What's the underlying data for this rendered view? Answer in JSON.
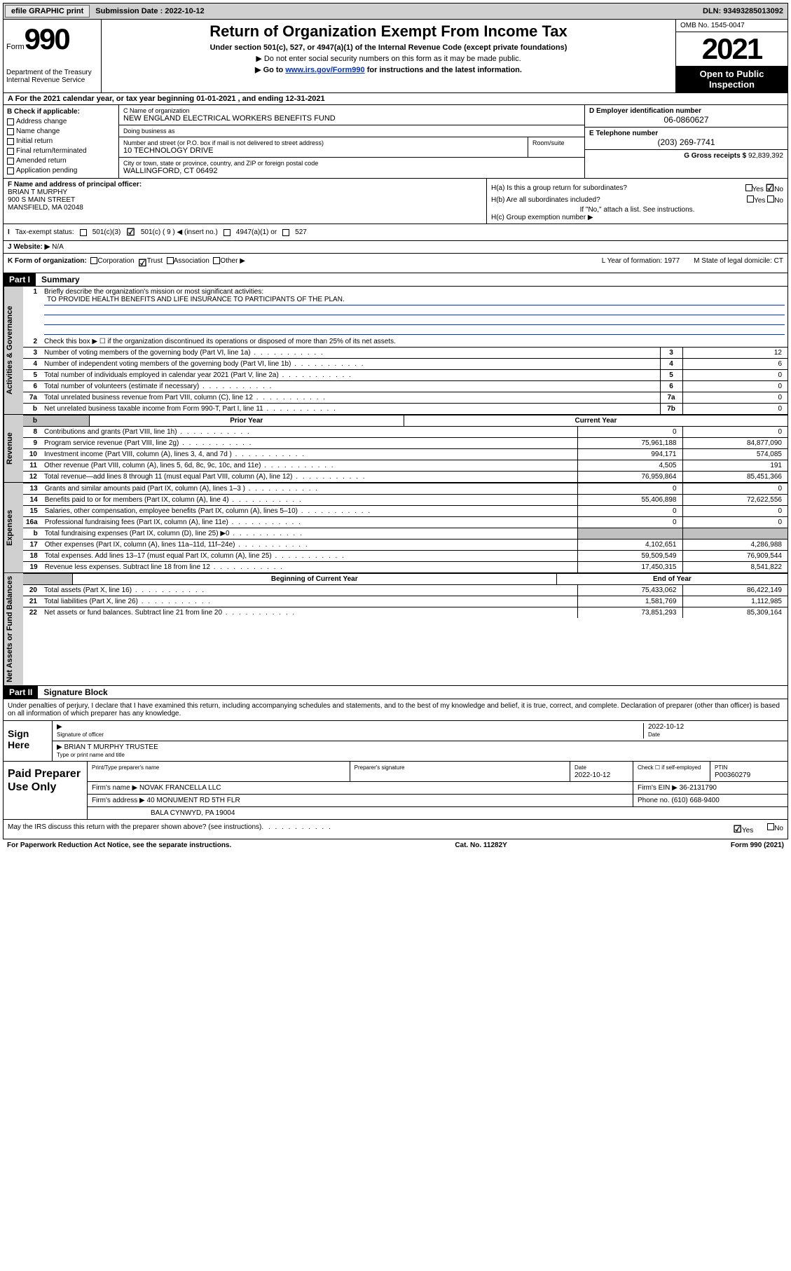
{
  "topbar": {
    "efile": "efile GRAPHIC print",
    "sub_label": "Submission Date : ",
    "sub_date": "2022-10-12",
    "dln": "DLN: 93493285013092"
  },
  "header": {
    "form_word": "Form",
    "form_num": "990",
    "dept": "Department of the Treasury\nInternal Revenue Service",
    "title": "Return of Organization Exempt From Income Tax",
    "subtitle": "Under section 501(c), 527, or 4947(a)(1) of the Internal Revenue Code (except private foundations)",
    "note1": "▶ Do not enter social security numbers on this form as it may be made public.",
    "note2_pre": "▶ Go to ",
    "note2_link": "www.irs.gov/Form990",
    "note2_post": " for instructions and the latest information.",
    "omb": "OMB No. 1545-0047",
    "year": "2021",
    "open": "Open to Public Inspection"
  },
  "row_a": "A For the 2021 calendar year, or tax year beginning 01-01-2021   , and ending 12-31-2021",
  "col_b": {
    "hdr": "B Check if applicable:",
    "items": [
      "Address change",
      "Name change",
      "Initial return",
      "Final return/terminated",
      "Amended return",
      "Application pending"
    ]
  },
  "col_c": {
    "name_lbl": "C Name of organization",
    "name": "NEW ENGLAND ELECTRICAL WORKERS BENEFITS FUND",
    "dba_lbl": "Doing business as",
    "dba": "",
    "street_lbl": "Number and street (or P.O. box if mail is not delivered to street address)",
    "street": "10 TECHNOLOGY DRIVE",
    "room_lbl": "Room/suite",
    "city_lbl": "City or town, state or province, country, and ZIP or foreign postal code",
    "city": "WALLINGFORD, CT  06492"
  },
  "col_d": {
    "ein_lbl": "D Employer identification number",
    "ein": "06-0860627",
    "tel_lbl": "E Telephone number",
    "tel": "(203) 269-7741",
    "gross_lbl": "G Gross receipts $",
    "gross": "92,839,392"
  },
  "row_f": {
    "lbl": "F Name and address of principal officer:",
    "name": "BRIAN T MURPHY",
    "street": "900 S MAIN STREET",
    "city": "MANSFIELD, MA  02048"
  },
  "row_h": {
    "ha": "H(a)  Is this a group return for subordinates?",
    "hb": "H(b)  Are all subordinates included?",
    "hb_note": "If \"No,\" attach a list. See instructions.",
    "hc": "H(c)  Group exemption number ▶",
    "yes": "Yes",
    "no": "No"
  },
  "row_i": {
    "lbl": "Tax-exempt status:",
    "opts": [
      "501(c)(3)",
      "501(c) ( 9 ) ◀ (insert no.)",
      "4947(a)(1) or",
      "527"
    ]
  },
  "row_j": {
    "lbl": "J   Website: ▶",
    "val": "N/A"
  },
  "row_k": {
    "lbl": "K Form of organization:",
    "opts": [
      "Corporation",
      "Trust",
      "Association",
      "Other ▶"
    ],
    "l": "L Year of formation: 1977",
    "m": "M State of legal domicile: CT"
  },
  "part1": {
    "hdr": "Part I",
    "title": "Summary",
    "line1_lbl": "Briefly describe the organization's mission or most significant activities:",
    "line1_val": "TO PROVIDE HEALTH BENEFITS AND LIFE INSURANCE TO PARTICIPANTS OF THE PLAN.",
    "line2": "Check this box ▶ ☐  if the organization discontinued its operations or disposed of more than 25% of its net assets.",
    "tab_gov": "Activities & Governance",
    "tab_rev": "Revenue",
    "tab_exp": "Expenses",
    "tab_net": "Net Assets or Fund Balances",
    "rows_gov": [
      {
        "n": "3",
        "t": "Number of voting members of the governing body (Part VI, line 1a)",
        "b": "3",
        "v": "12"
      },
      {
        "n": "4",
        "t": "Number of independent voting members of the governing body (Part VI, line 1b)",
        "b": "4",
        "v": "6"
      },
      {
        "n": "5",
        "t": "Total number of individuals employed in calendar year 2021 (Part V, line 2a)",
        "b": "5",
        "v": "0"
      },
      {
        "n": "6",
        "t": "Total number of volunteers (estimate if necessary)",
        "b": "6",
        "v": "0"
      },
      {
        "n": "7a",
        "t": "Total unrelated business revenue from Part VIII, column (C), line 12",
        "b": "7a",
        "v": "0"
      },
      {
        "n": "b",
        "t": "Net unrelated business taxable income from Form 990-T, Part I, line 11",
        "b": "7b",
        "v": "0"
      }
    ],
    "col_prior": "Prior Year",
    "col_curr": "Current Year",
    "rows_rev": [
      {
        "n": "8",
        "t": "Contributions and grants (Part VIII, line 1h)",
        "p": "0",
        "c": "0"
      },
      {
        "n": "9",
        "t": "Program service revenue (Part VIII, line 2g)",
        "p": "75,961,188",
        "c": "84,877,090"
      },
      {
        "n": "10",
        "t": "Investment income (Part VIII, column (A), lines 3, 4, and 7d )",
        "p": "994,171",
        "c": "574,085"
      },
      {
        "n": "11",
        "t": "Other revenue (Part VIII, column (A), lines 5, 6d, 8c, 9c, 10c, and 11e)",
        "p": "4,505",
        "c": "191"
      },
      {
        "n": "12",
        "t": "Total revenue—add lines 8 through 11 (must equal Part VIII, column (A), line 12)",
        "p": "76,959,864",
        "c": "85,451,366"
      }
    ],
    "rows_exp": [
      {
        "n": "13",
        "t": "Grants and similar amounts paid (Part IX, column (A), lines 1–3 )",
        "p": "0",
        "c": "0"
      },
      {
        "n": "14",
        "t": "Benefits paid to or for members (Part IX, column (A), line 4)",
        "p": "55,406,898",
        "c": "72,622,556"
      },
      {
        "n": "15",
        "t": "Salaries, other compensation, employee benefits (Part IX, column (A), lines 5–10)",
        "p": "0",
        "c": "0"
      },
      {
        "n": "16a",
        "t": "Professional fundraising fees (Part IX, column (A), line 11e)",
        "p": "0",
        "c": "0"
      },
      {
        "n": "b",
        "t": "Total fundraising expenses (Part IX, column (D), line 25) ▶0",
        "p": "",
        "c": "",
        "grey": true
      },
      {
        "n": "17",
        "t": "Other expenses (Part IX, column (A), lines 11a–11d, 11f–24e)",
        "p": "4,102,651",
        "c": "4,286,988"
      },
      {
        "n": "18",
        "t": "Total expenses. Add lines 13–17 (must equal Part IX, column (A), line 25)",
        "p": "59,509,549",
        "c": "76,909,544"
      },
      {
        "n": "19",
        "t": "Revenue less expenses. Subtract line 18 from line 12",
        "p": "17,450,315",
        "c": "8,541,822"
      }
    ],
    "col_begin": "Beginning of Current Year",
    "col_end": "End of Year",
    "rows_net": [
      {
        "n": "20",
        "t": "Total assets (Part X, line 16)",
        "p": "75,433,062",
        "c": "86,422,149"
      },
      {
        "n": "21",
        "t": "Total liabilities (Part X, line 26)",
        "p": "1,581,769",
        "c": "1,112,985"
      },
      {
        "n": "22",
        "t": "Net assets or fund balances. Subtract line 21 from line 20",
        "p": "73,851,293",
        "c": "85,309,164"
      }
    ]
  },
  "part2": {
    "hdr": "Part II",
    "title": "Signature Block",
    "decl": "Under penalties of perjury, I declare that I have examined this return, including accompanying schedules and statements, and to the best of my knowledge and belief, it is true, correct, and complete. Declaration of preparer (other than officer) is based on all information of which preparer has any knowledge.",
    "sign_here": "Sign Here",
    "sig_officer": "Signature of officer",
    "sig_date": "2022-10-12",
    "date_lbl": "Date",
    "officer_name": "BRIAN T MURPHY  TRUSTEE",
    "name_lbl": "Type or print name and title",
    "paid": "Paid Preparer Use Only",
    "prep_name_lbl": "Print/Type preparer's name",
    "prep_sig_lbl": "Preparer's signature",
    "prep_date_lbl": "Date",
    "prep_date": "2022-10-12",
    "check_lbl": "Check ☐ if self-employed",
    "ptin_lbl": "PTIN",
    "ptin": "P00360279",
    "firm_name_lbl": "Firm's name    ▶",
    "firm_name": "NOVAK FRANCELLA LLC",
    "firm_ein_lbl": "Firm's EIN ▶",
    "firm_ein": "36-2131790",
    "firm_addr_lbl": "Firm's address ▶",
    "firm_addr1": "40 MONUMENT RD 5TH FLR",
    "firm_addr2": "BALA CYNWYD, PA  19004",
    "phone_lbl": "Phone no.",
    "phone": "(610) 668-9400",
    "discuss": "May the IRS discuss this return with the preparer shown above? (see instructions)",
    "yes": "Yes",
    "no": "No"
  },
  "footer": {
    "left": "For Paperwork Reduction Act Notice, see the separate instructions.",
    "mid": "Cat. No. 11282Y",
    "right": "Form 990 (2021)"
  }
}
